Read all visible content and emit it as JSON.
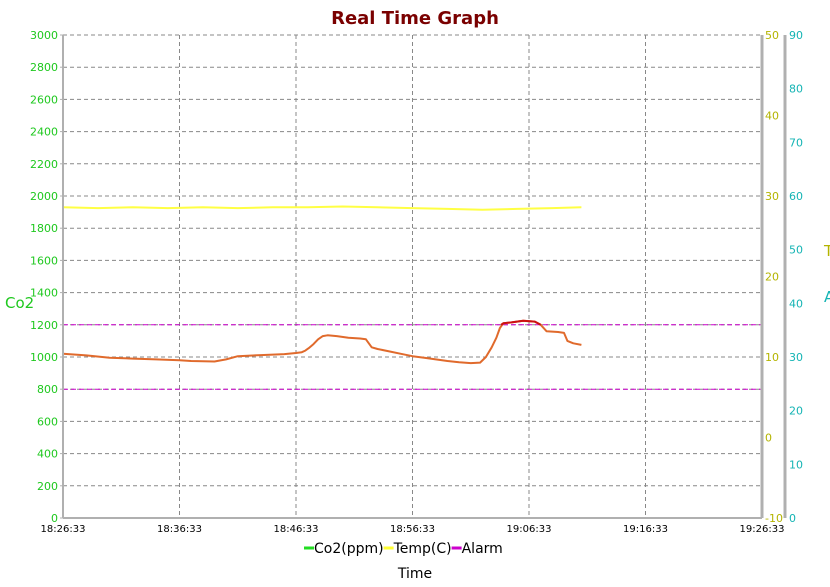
{
  "chart_data": {
    "type": "line",
    "title": "Real Time Graph",
    "xlabel": "Time",
    "ylabel_left": "Co2",
    "ylabel_right_1": "T",
    "ylabel_right_2": "A",
    "x_ticks": [
      "18:26:33",
      "18:36:33",
      "18:46:33",
      "18:56:33",
      "19:06:33",
      "19:16:33",
      "19:26:33"
    ],
    "x_range_minutes": [
      0,
      60
    ],
    "y_left": {
      "min": 0,
      "max": 3000,
      "ticks": [
        0,
        200,
        400,
        600,
        800,
        1000,
        1200,
        1400,
        1600,
        1800,
        2000,
        2200,
        2400,
        2600,
        2800,
        3000
      ]
    },
    "y_temp": {
      "min": -10,
      "max": 50,
      "ticks": [
        -10,
        0,
        10,
        20,
        30,
        40,
        50
      ]
    },
    "y_hum": {
      "min": 0,
      "max": 90,
      "ticks": [
        0,
        10,
        20,
        30,
        40,
        50,
        60,
        70,
        80,
        90
      ]
    },
    "grid": true,
    "legend_position": "bottom",
    "legend": [
      {
        "label": "Co2(ppm)",
        "color": "#22dd22"
      },
      {
        "label": "Temp(C)",
        "color": "#ffff33"
      },
      {
        "label": "Alarm",
        "color": "#cc00cc"
      }
    ],
    "alarm_lines": [
      1200,
      800
    ],
    "series": [
      {
        "name": "Co2(ppm)",
        "axis": "left",
        "color": "#e06a2c",
        "points": [
          [
            0,
            1020
          ],
          [
            2,
            1010
          ],
          [
            4,
            995
          ],
          [
            6,
            990
          ],
          [
            8,
            985
          ],
          [
            10,
            980
          ],
          [
            11,
            975
          ],
          [
            13,
            972
          ],
          [
            14,
            985
          ],
          [
            15,
            1005
          ],
          [
            17,
            1012
          ],
          [
            19,
            1018
          ],
          [
            20,
            1025
          ],
          [
            20.5,
            1030
          ],
          [
            20.8,
            1040
          ],
          [
            21.1,
            1055
          ],
          [
            21.5,
            1080
          ],
          [
            21.9,
            1110
          ],
          [
            22.3,
            1130
          ],
          [
            22.7,
            1135
          ],
          [
            23.5,
            1130
          ],
          [
            24.5,
            1120
          ],
          [
            25.5,
            1115
          ],
          [
            26,
            1110
          ],
          [
            26.5,
            1060
          ],
          [
            27,
            1050
          ],
          [
            28,
            1035
          ],
          [
            29,
            1020
          ],
          [
            30,
            1005
          ],
          [
            31,
            995
          ],
          [
            32,
            985
          ],
          [
            33,
            975
          ],
          [
            34,
            968
          ],
          [
            35,
            962
          ],
          [
            35.8,
            965
          ],
          [
            36.3,
            1000
          ],
          [
            36.8,
            1060
          ],
          [
            37.2,
            1120
          ],
          [
            37.5,
            1180
          ],
          [
            37.8,
            1210
          ],
          [
            38.5,
            1215
          ],
          [
            39.5,
            1225
          ],
          [
            40.5,
            1220
          ],
          [
            41,
            1200
          ],
          [
            41.5,
            1160
          ],
          [
            42.5,
            1155
          ],
          [
            43,
            1150
          ],
          [
            43.3,
            1100
          ],
          [
            43.8,
            1085
          ],
          [
            44.5,
            1075
          ]
        ]
      },
      {
        "name": "Co2 over alarm",
        "axis": "left",
        "color": "#cc1111",
        "points": [
          [
            37.6,
            1200
          ],
          [
            37.8,
            1210
          ],
          [
            38.5,
            1215
          ],
          [
            39.5,
            1225
          ],
          [
            40.5,
            1220
          ],
          [
            41,
            1200
          ]
        ]
      },
      {
        "name": "Temp(C)",
        "axis": "temp",
        "color": "#ffff44",
        "points": [
          [
            0,
            28.6
          ],
          [
            3,
            28.5
          ],
          [
            6,
            28.6
          ],
          [
            9,
            28.5
          ],
          [
            12,
            28.6
          ],
          [
            15,
            28.5
          ],
          [
            18,
            28.6
          ],
          [
            21,
            28.6
          ],
          [
            24,
            28.7
          ],
          [
            27,
            28.6
          ],
          [
            30,
            28.5
          ],
          [
            33,
            28.4
          ],
          [
            36,
            28.3
          ],
          [
            39,
            28.4
          ],
          [
            42,
            28.5
          ],
          [
            44.5,
            28.6
          ]
        ]
      }
    ]
  }
}
